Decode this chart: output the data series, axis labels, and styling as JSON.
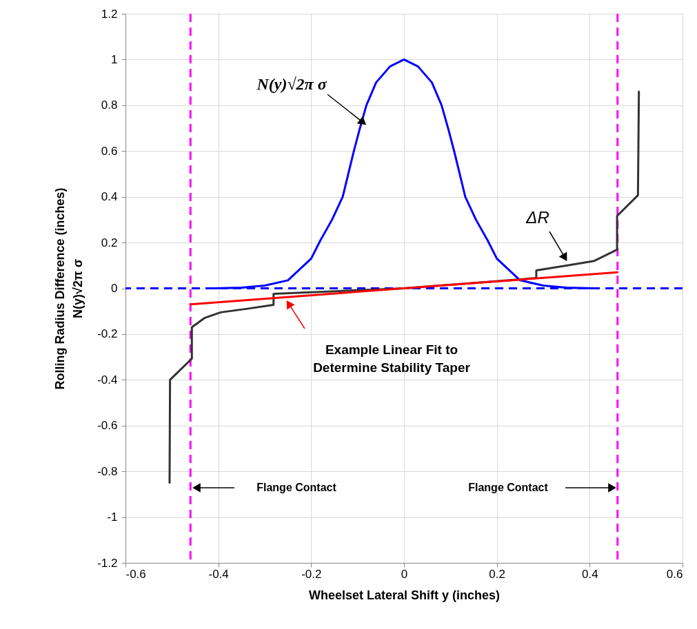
{
  "chart_data": {
    "type": "line",
    "xlabel": "Wheelset Lateral Shift y (inches)",
    "ylabel": "Rolling Radius Difference (inches)\nN(y)√2π σ",
    "xlim": [
      -0.6,
      0.6
    ],
    "xticks": [
      -0.6,
      -0.4,
      -0.2,
      0,
      0.2,
      0.4,
      0.6
    ],
    "ylim": [
      -1.2,
      1.2
    ],
    "yticks": [
      -1.2,
      -1,
      -0.8,
      -0.6,
      -0.4,
      -0.2,
      0,
      0.2,
      0.4,
      0.6,
      0.8,
      1,
      1.2
    ],
    "grid": true,
    "marker": "none",
    "series": [
      {
        "color": "#0000ff",
        "x": [
          -0.41,
          -0.35,
          -0.3,
          -0.25,
          -0.2,
          -0.18,
          -0.155,
          -0.132,
          -0.12,
          -0.108,
          -0.095,
          -0.081,
          -0.06,
          -0.03,
          0,
          0.03,
          0.06,
          0.081,
          0.095,
          0.108,
          0.12,
          0.132,
          0.155,
          0.18,
          0.2,
          0.25,
          0.3,
          0.35,
          0.41
        ],
        "values": [
          0,
          0.003,
          0.012,
          0.035,
          0.13,
          0.21,
          0.3,
          0.4,
          0.5,
          0.6,
          0.7,
          0.8,
          0.9,
          0.97,
          1,
          0.97,
          0.9,
          0.8,
          0.7,
          0.6,
          0.5,
          0.4,
          0.3,
          0.21,
          0.13,
          0.035,
          0.012,
          0.003,
          0
        ]
      },
      {
        "color": "#333333",
        "x": [
          -0.505,
          -0.504,
          -0.457,
          -0.457,
          -0.43,
          -0.395,
          -0.34,
          -0.281,
          -0.281,
          0,
          0.285,
          0.285,
          0.352,
          0.41,
          0.459,
          0.459,
          0.504,
          0.506
        ],
        "values": [
          -0.85,
          -0.4,
          -0.307,
          -0.17,
          -0.13,
          -0.105,
          -0.09,
          -0.072,
          -0.024,
          0,
          0.045,
          0.078,
          0.1,
          0.12,
          0.169,
          0.316,
          0.407,
          0.86
        ]
      },
      {
        "color": "#ff0000",
        "x": [
          -0.46,
          0.46
        ],
        "values": [
          -0.07,
          0.07
        ]
      }
    ],
    "ref_lines": [
      {
        "axis": "y",
        "value": 0,
        "color": "#0000ff",
        "line_style": "dashed"
      },
      {
        "axis": "x",
        "value": -0.46,
        "color": "#ff00ff",
        "line_style": "dashed"
      },
      {
        "axis": "x",
        "value": 0.46,
        "color": "#ff00ff",
        "line_style": "dashed"
      }
    ],
    "annotations": [
      "N(y)√2π σ",
      "ΔR",
      "Example Linear Fit to\nDetermine Stability Taper",
      "Flange Contact",
      "Flange Contact"
    ]
  }
}
